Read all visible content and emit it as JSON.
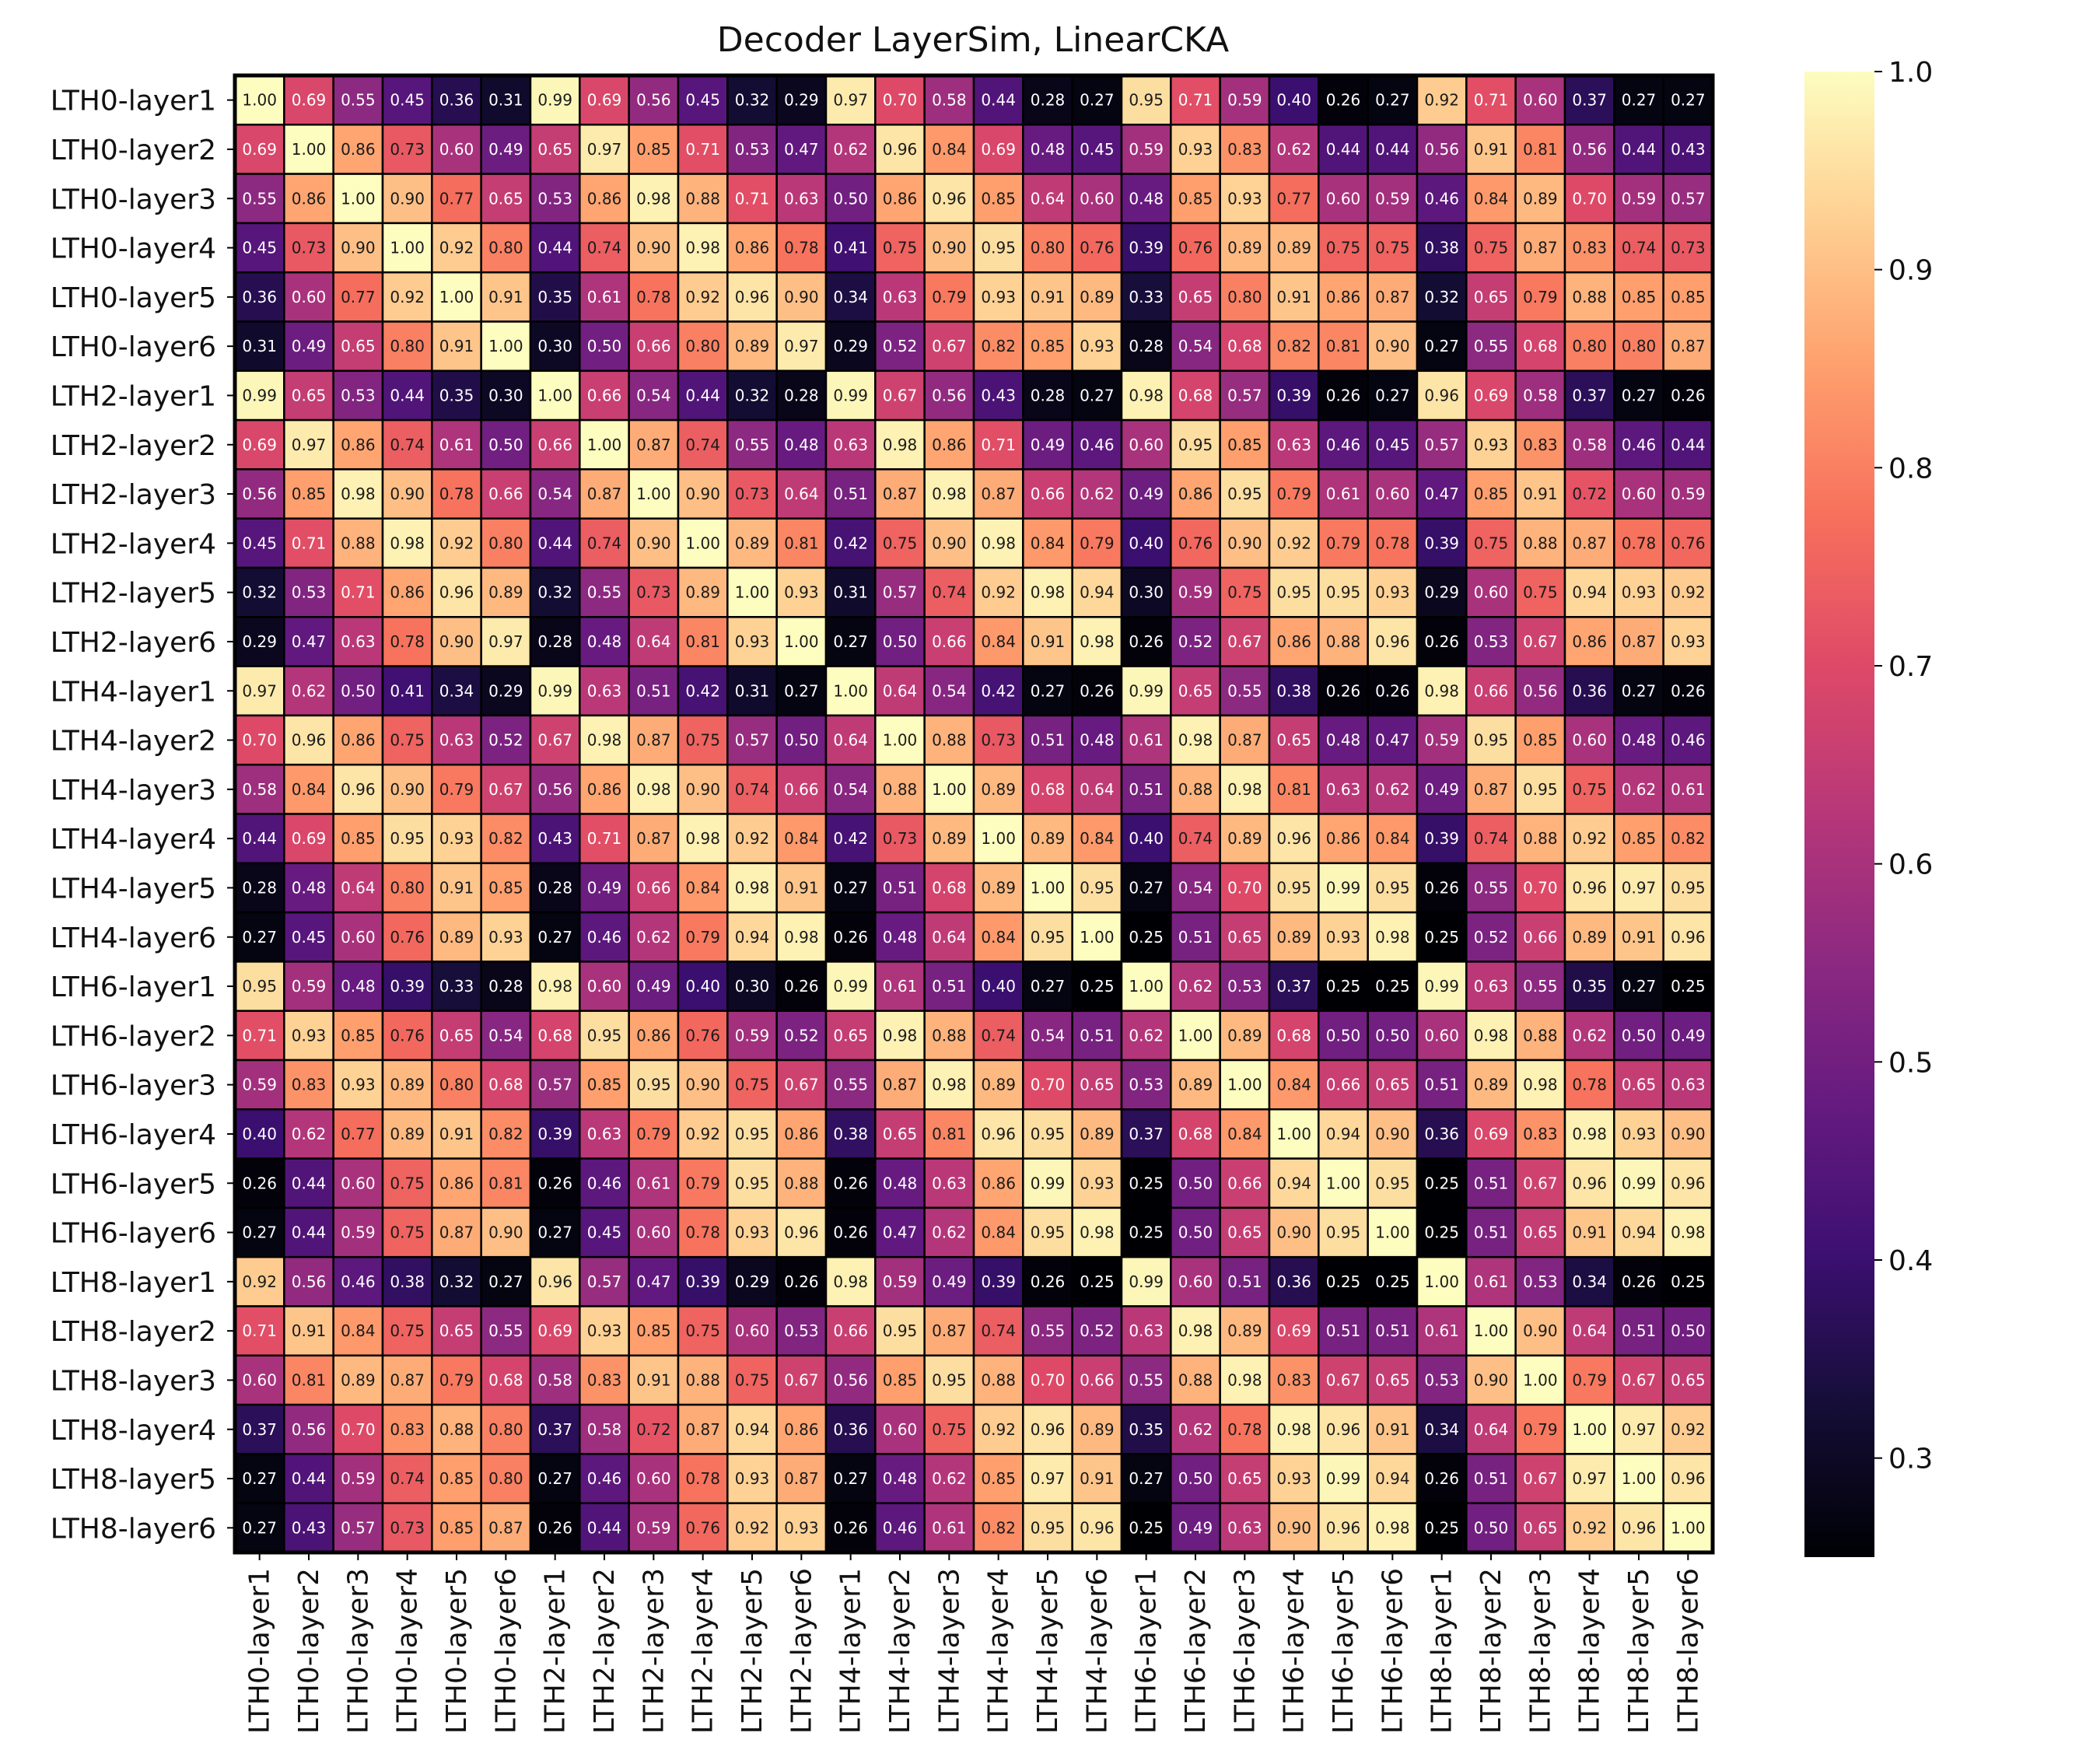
{
  "chart_data": {
    "type": "heatmap",
    "title": "Decoder LayerSim, LinearCKA",
    "xlabel": "",
    "ylabel": "",
    "colormap": "magma",
    "vmin": 0.25,
    "vmax": 1.0,
    "colorbar_ticks": [
      "0.3",
      "0.4",
      "0.5",
      "0.6",
      "0.7",
      "0.8",
      "0.9",
      "1.0"
    ],
    "labels": [
      "LTH0-layer1",
      "LTH0-layer2",
      "LTH0-layer3",
      "LTH0-layer4",
      "LTH0-layer5",
      "LTH0-layer6",
      "LTH2-layer1",
      "LTH2-layer2",
      "LTH2-layer3",
      "LTH2-layer4",
      "LTH2-layer5",
      "LTH2-layer6",
      "LTH4-layer1",
      "LTH4-layer2",
      "LTH4-layer3",
      "LTH4-layer4",
      "LTH4-layer5",
      "LTH4-layer6",
      "LTH6-layer1",
      "LTH6-layer2",
      "LTH6-layer3",
      "LTH6-layer4",
      "LTH6-layer5",
      "LTH6-layer6",
      "LTH8-layer1",
      "LTH8-layer2",
      "LTH8-layer3",
      "LTH8-layer4",
      "LTH8-layer5",
      "LTH8-layer6"
    ],
    "values": [
      [
        1.0,
        0.69,
        0.55,
        0.45,
        0.36,
        0.31,
        0.99,
        0.69,
        0.56,
        0.45,
        0.32,
        0.29,
        0.97,
        0.7,
        0.58,
        0.44,
        0.28,
        0.27,
        0.95,
        0.71,
        0.59,
        0.4,
        0.26,
        0.27,
        0.92,
        0.71,
        0.6,
        0.37,
        0.27,
        0.27
      ],
      [
        0.69,
        1.0,
        0.86,
        0.73,
        0.6,
        0.49,
        0.65,
        0.97,
        0.85,
        0.71,
        0.53,
        0.47,
        0.62,
        0.96,
        0.84,
        0.69,
        0.48,
        0.45,
        0.59,
        0.93,
        0.83,
        0.62,
        0.44,
        0.44,
        0.56,
        0.91,
        0.81,
        0.56,
        0.44,
        0.43
      ],
      [
        0.55,
        0.86,
        1.0,
        0.9,
        0.77,
        0.65,
        0.53,
        0.86,
        0.98,
        0.88,
        0.71,
        0.63,
        0.5,
        0.86,
        0.96,
        0.85,
        0.64,
        0.6,
        0.48,
        0.85,
        0.93,
        0.77,
        0.6,
        0.59,
        0.46,
        0.84,
        0.89,
        0.7,
        0.59,
        0.57
      ],
      [
        0.45,
        0.73,
        0.9,
        1.0,
        0.92,
        0.8,
        0.44,
        0.74,
        0.9,
        0.98,
        0.86,
        0.78,
        0.41,
        0.75,
        0.9,
        0.95,
        0.8,
        0.76,
        0.39,
        0.76,
        0.89,
        0.89,
        0.75,
        0.75,
        0.38,
        0.75,
        0.87,
        0.83,
        0.74,
        0.73
      ],
      [
        0.36,
        0.6,
        0.77,
        0.92,
        1.0,
        0.91,
        0.35,
        0.61,
        0.78,
        0.92,
        0.96,
        0.9,
        0.34,
        0.63,
        0.79,
        0.93,
        0.91,
        0.89,
        0.33,
        0.65,
        0.8,
        0.91,
        0.86,
        0.87,
        0.32,
        0.65,
        0.79,
        0.88,
        0.85,
        0.85
      ],
      [
        0.31,
        0.49,
        0.65,
        0.8,
        0.91,
        1.0,
        0.3,
        0.5,
        0.66,
        0.8,
        0.89,
        0.97,
        0.29,
        0.52,
        0.67,
        0.82,
        0.85,
        0.93,
        0.28,
        0.54,
        0.68,
        0.82,
        0.81,
        0.9,
        0.27,
        0.55,
        0.68,
        0.8,
        0.8,
        0.87
      ],
      [
        0.99,
        0.65,
        0.53,
        0.44,
        0.35,
        0.3,
        1.0,
        0.66,
        0.54,
        0.44,
        0.32,
        0.28,
        0.99,
        0.67,
        0.56,
        0.43,
        0.28,
        0.27,
        0.98,
        0.68,
        0.57,
        0.39,
        0.26,
        0.27,
        0.96,
        0.69,
        0.58,
        0.37,
        0.27,
        0.26
      ],
      [
        0.69,
        0.97,
        0.86,
        0.74,
        0.61,
        0.5,
        0.66,
        1.0,
        0.87,
        0.74,
        0.55,
        0.48,
        0.63,
        0.98,
        0.86,
        0.71,
        0.49,
        0.46,
        0.6,
        0.95,
        0.85,
        0.63,
        0.46,
        0.45,
        0.57,
        0.93,
        0.83,
        0.58,
        0.46,
        0.44
      ],
      [
        0.56,
        0.85,
        0.98,
        0.9,
        0.78,
        0.66,
        0.54,
        0.87,
        1.0,
        0.9,
        0.73,
        0.64,
        0.51,
        0.87,
        0.98,
        0.87,
        0.66,
        0.62,
        0.49,
        0.86,
        0.95,
        0.79,
        0.61,
        0.6,
        0.47,
        0.85,
        0.91,
        0.72,
        0.6,
        0.59
      ],
      [
        0.45,
        0.71,
        0.88,
        0.98,
        0.92,
        0.8,
        0.44,
        0.74,
        0.9,
        1.0,
        0.89,
        0.81,
        0.42,
        0.75,
        0.9,
        0.98,
        0.84,
        0.79,
        0.4,
        0.76,
        0.9,
        0.92,
        0.79,
        0.78,
        0.39,
        0.75,
        0.88,
        0.87,
        0.78,
        0.76
      ],
      [
        0.32,
        0.53,
        0.71,
        0.86,
        0.96,
        0.89,
        0.32,
        0.55,
        0.73,
        0.89,
        1.0,
        0.93,
        0.31,
        0.57,
        0.74,
        0.92,
        0.98,
        0.94,
        0.3,
        0.59,
        0.75,
        0.95,
        0.95,
        0.93,
        0.29,
        0.6,
        0.75,
        0.94,
        0.93,
        0.92
      ],
      [
        0.29,
        0.47,
        0.63,
        0.78,
        0.9,
        0.97,
        0.28,
        0.48,
        0.64,
        0.81,
        0.93,
        1.0,
        0.27,
        0.5,
        0.66,
        0.84,
        0.91,
        0.98,
        0.26,
        0.52,
        0.67,
        0.86,
        0.88,
        0.96,
        0.26,
        0.53,
        0.67,
        0.86,
        0.87,
        0.93
      ],
      [
        0.97,
        0.62,
        0.5,
        0.41,
        0.34,
        0.29,
        0.99,
        0.63,
        0.51,
        0.42,
        0.31,
        0.27,
        1.0,
        0.64,
        0.54,
        0.42,
        0.27,
        0.26,
        0.99,
        0.65,
        0.55,
        0.38,
        0.26,
        0.26,
        0.98,
        0.66,
        0.56,
        0.36,
        0.27,
        0.26
      ],
      [
        0.7,
        0.96,
        0.86,
        0.75,
        0.63,
        0.52,
        0.67,
        0.98,
        0.87,
        0.75,
        0.57,
        0.5,
        0.64,
        1.0,
        0.88,
        0.73,
        0.51,
        0.48,
        0.61,
        0.98,
        0.87,
        0.65,
        0.48,
        0.47,
        0.59,
        0.95,
        0.85,
        0.6,
        0.48,
        0.46
      ],
      [
        0.58,
        0.84,
        0.96,
        0.9,
        0.79,
        0.67,
        0.56,
        0.86,
        0.98,
        0.9,
        0.74,
        0.66,
        0.54,
        0.88,
        1.0,
        0.89,
        0.68,
        0.64,
        0.51,
        0.88,
        0.98,
        0.81,
        0.63,
        0.62,
        0.49,
        0.87,
        0.95,
        0.75,
        0.62,
        0.61
      ],
      [
        0.44,
        0.69,
        0.85,
        0.95,
        0.93,
        0.82,
        0.43,
        0.71,
        0.87,
        0.98,
        0.92,
        0.84,
        0.42,
        0.73,
        0.89,
        1.0,
        0.89,
        0.84,
        0.4,
        0.74,
        0.89,
        0.96,
        0.86,
        0.84,
        0.39,
        0.74,
        0.88,
        0.92,
        0.85,
        0.82
      ],
      [
        0.28,
        0.48,
        0.64,
        0.8,
        0.91,
        0.85,
        0.28,
        0.49,
        0.66,
        0.84,
        0.98,
        0.91,
        0.27,
        0.51,
        0.68,
        0.89,
        1.0,
        0.95,
        0.27,
        0.54,
        0.7,
        0.95,
        0.99,
        0.95,
        0.26,
        0.55,
        0.7,
        0.96,
        0.97,
        0.95
      ],
      [
        0.27,
        0.45,
        0.6,
        0.76,
        0.89,
        0.93,
        0.27,
        0.46,
        0.62,
        0.79,
        0.94,
        0.98,
        0.26,
        0.48,
        0.64,
        0.84,
        0.95,
        1.0,
        0.25,
        0.51,
        0.65,
        0.89,
        0.93,
        0.98,
        0.25,
        0.52,
        0.66,
        0.89,
        0.91,
        0.96
      ],
      [
        0.95,
        0.59,
        0.48,
        0.39,
        0.33,
        0.28,
        0.98,
        0.6,
        0.49,
        0.4,
        0.3,
        0.26,
        0.99,
        0.61,
        0.51,
        0.4,
        0.27,
        0.25,
        1.0,
        0.62,
        0.53,
        0.37,
        0.25,
        0.25,
        0.99,
        0.63,
        0.55,
        0.35,
        0.27,
        0.25
      ],
      [
        0.71,
        0.93,
        0.85,
        0.76,
        0.65,
        0.54,
        0.68,
        0.95,
        0.86,
        0.76,
        0.59,
        0.52,
        0.65,
        0.98,
        0.88,
        0.74,
        0.54,
        0.51,
        0.62,
        1.0,
        0.89,
        0.68,
        0.5,
        0.5,
        0.6,
        0.98,
        0.88,
        0.62,
        0.5,
        0.49
      ],
      [
        0.59,
        0.83,
        0.93,
        0.89,
        0.8,
        0.68,
        0.57,
        0.85,
        0.95,
        0.9,
        0.75,
        0.67,
        0.55,
        0.87,
        0.98,
        0.89,
        0.7,
        0.65,
        0.53,
        0.89,
        1.0,
        0.84,
        0.66,
        0.65,
        0.51,
        0.89,
        0.98,
        0.78,
        0.65,
        0.63
      ],
      [
        0.4,
        0.62,
        0.77,
        0.89,
        0.91,
        0.82,
        0.39,
        0.63,
        0.79,
        0.92,
        0.95,
        0.86,
        0.38,
        0.65,
        0.81,
        0.96,
        0.95,
        0.89,
        0.37,
        0.68,
        0.84,
        1.0,
        0.94,
        0.9,
        0.36,
        0.69,
        0.83,
        0.98,
        0.93,
        0.9
      ],
      [
        0.26,
        0.44,
        0.6,
        0.75,
        0.86,
        0.81,
        0.26,
        0.46,
        0.61,
        0.79,
        0.95,
        0.88,
        0.26,
        0.48,
        0.63,
        0.86,
        0.99,
        0.93,
        0.25,
        0.5,
        0.66,
        0.94,
        1.0,
        0.95,
        0.25,
        0.51,
        0.67,
        0.96,
        0.99,
        0.96
      ],
      [
        0.27,
        0.44,
        0.59,
        0.75,
        0.87,
        0.9,
        0.27,
        0.45,
        0.6,
        0.78,
        0.93,
        0.96,
        0.26,
        0.47,
        0.62,
        0.84,
        0.95,
        0.98,
        0.25,
        0.5,
        0.65,
        0.9,
        0.95,
        1.0,
        0.25,
        0.51,
        0.65,
        0.91,
        0.94,
        0.98
      ],
      [
        0.92,
        0.56,
        0.46,
        0.38,
        0.32,
        0.27,
        0.96,
        0.57,
        0.47,
        0.39,
        0.29,
        0.26,
        0.98,
        0.59,
        0.49,
        0.39,
        0.26,
        0.25,
        0.99,
        0.6,
        0.51,
        0.36,
        0.25,
        0.25,
        1.0,
        0.61,
        0.53,
        0.34,
        0.26,
        0.25
      ],
      [
        0.71,
        0.91,
        0.84,
        0.75,
        0.65,
        0.55,
        0.69,
        0.93,
        0.85,
        0.75,
        0.6,
        0.53,
        0.66,
        0.95,
        0.87,
        0.74,
        0.55,
        0.52,
        0.63,
        0.98,
        0.89,
        0.69,
        0.51,
        0.51,
        0.61,
        1.0,
        0.9,
        0.64,
        0.51,
        0.5
      ],
      [
        0.6,
        0.81,
        0.89,
        0.87,
        0.79,
        0.68,
        0.58,
        0.83,
        0.91,
        0.88,
        0.75,
        0.67,
        0.56,
        0.85,
        0.95,
        0.88,
        0.7,
        0.66,
        0.55,
        0.88,
        0.98,
        0.83,
        0.67,
        0.65,
        0.53,
        0.9,
        1.0,
        0.79,
        0.67,
        0.65
      ],
      [
        0.37,
        0.56,
        0.7,
        0.83,
        0.88,
        0.8,
        0.37,
        0.58,
        0.72,
        0.87,
        0.94,
        0.86,
        0.36,
        0.6,
        0.75,
        0.92,
        0.96,
        0.89,
        0.35,
        0.62,
        0.78,
        0.98,
        0.96,
        0.91,
        0.34,
        0.64,
        0.79,
        1.0,
        0.97,
        0.92
      ],
      [
        0.27,
        0.44,
        0.59,
        0.74,
        0.85,
        0.8,
        0.27,
        0.46,
        0.6,
        0.78,
        0.93,
        0.87,
        0.27,
        0.48,
        0.62,
        0.85,
        0.97,
        0.91,
        0.27,
        0.5,
        0.65,
        0.93,
        0.99,
        0.94,
        0.26,
        0.51,
        0.67,
        0.97,
        1.0,
        0.96
      ],
      [
        0.27,
        0.43,
        0.57,
        0.73,
        0.85,
        0.87,
        0.26,
        0.44,
        0.59,
        0.76,
        0.92,
        0.93,
        0.26,
        0.46,
        0.61,
        0.82,
        0.95,
        0.96,
        0.25,
        0.49,
        0.63,
        0.9,
        0.96,
        0.98,
        0.25,
        0.5,
        0.65,
        0.92,
        0.96,
        1.0
      ]
    ]
  }
}
